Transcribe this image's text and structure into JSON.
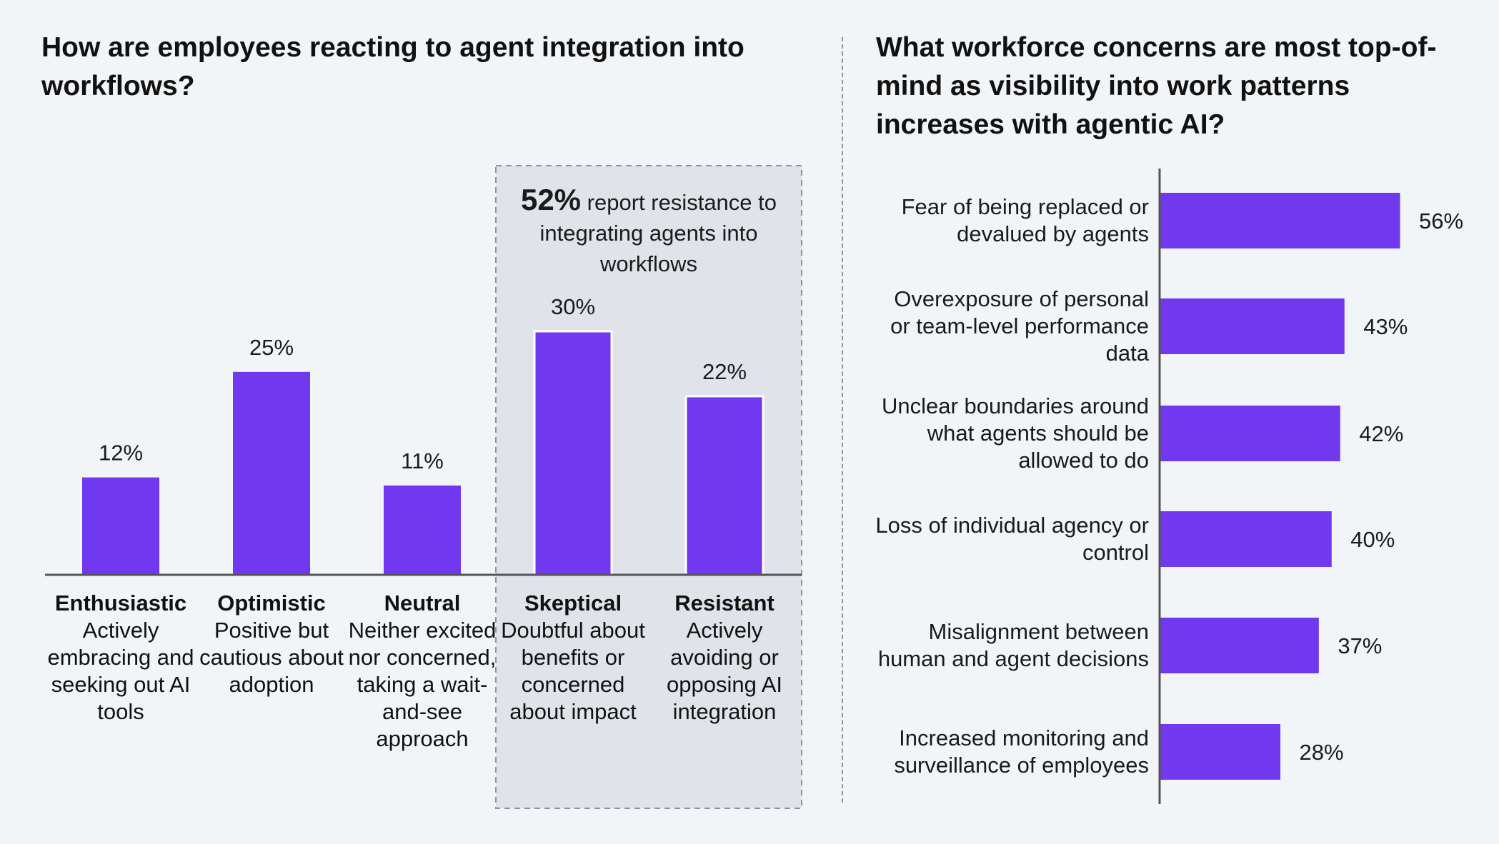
{
  "colors": {
    "bar": "#7039f0",
    "axis": "#555555",
    "highlight_bg": "#e0e4ea",
    "highlight_border": "#8a94a3"
  },
  "chart_data": [
    {
      "type": "bar",
      "title": "How are employees reacting to agent integration into workflows?",
      "categories": [
        "Enthusiastic",
        "Optimistic",
        "Neutral",
        "Skeptical",
        "Resistant"
      ],
      "descriptions": [
        "Actively embracing and seeking out AI tools",
        "Positive but cautious about adoption",
        "Neither excited nor concerned, taking a wait-and-see approach",
        "Doubtful about benefits or concerned about impact",
        "Actively avoiding or opposing AI integration"
      ],
      "values": [
        12,
        25,
        11,
        30,
        22
      ],
      "value_labels": [
        "12%",
        "25%",
        "11%",
        "30%",
        "22%"
      ],
      "ylim": [
        0,
        30
      ],
      "grid": false,
      "highlight": {
        "categories": [
          "Skeptical",
          "Resistant"
        ],
        "stat": "52%",
        "text": "report resistance to integrating agents into workflows"
      }
    },
    {
      "type": "bar",
      "orientation": "horizontal",
      "title": "What workforce concerns are most top-of-mind as visibility into work patterns increases with agentic AI?",
      "categories": [
        "Fear of being replaced or devalued by agents",
        "Overexposure of personal or team-level performance data",
        "Unclear boundaries around what agents should be allowed to do",
        "Loss of individual agency or control",
        "Misalignment between human and agent decisions",
        "Increased monitoring and surveillance of employees"
      ],
      "values": [
        56,
        43,
        42,
        40,
        37,
        28
      ],
      "value_labels": [
        "56%",
        "43%",
        "42%",
        "40%",
        "37%",
        "28%"
      ],
      "xlim": [
        0,
        56
      ],
      "grid": false
    }
  ]
}
